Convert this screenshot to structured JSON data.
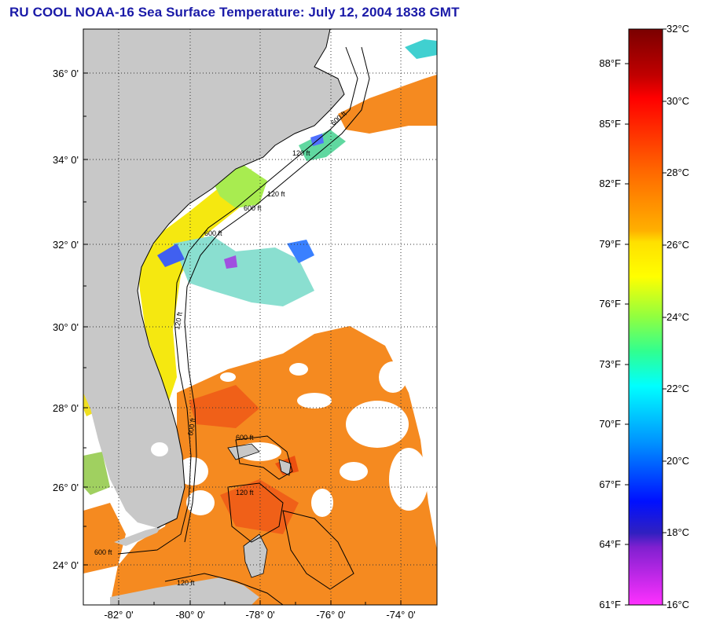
{
  "title": "RU COOL  NOAA-16  Sea Surface Temperature:  July 12, 2004 1838 GMT",
  "map": {
    "lat_labels": [
      "36° 0'",
      "34° 0'",
      "32° 0'",
      "30° 0'",
      "28° 0'",
      "26° 0'",
      "24° 0'"
    ],
    "lon_labels": [
      "-82° 0'",
      "-80° 0'",
      "-78° 0'",
      "-76° 0'",
      "-74° 0'"
    ],
    "contour_labels": [
      "600 ft",
      "120 ft",
      "600 ft",
      "120 ft",
      "600 ft",
      "120 ft",
      "600 ft",
      "600 ft",
      "120 ft",
      "600 ft",
      "120 ft"
    ],
    "colors": {
      "land": "#c8c8c8",
      "cloud": "#ffffff",
      "frame": "#000000"
    }
  },
  "colorbar": {
    "celsius_labels": [
      "32°C",
      "30°C",
      "28°C",
      "26°C",
      "24°C",
      "22°C",
      "20°C",
      "18°C",
      "16°C"
    ],
    "fahrenheit_labels": [
      "88°F",
      "85°F",
      "82°F",
      "79°F",
      "76°F",
      "73°F",
      "70°F",
      "67°F",
      "64°F",
      "61°F"
    ],
    "range_celsius": [
      16,
      32
    ]
  }
}
